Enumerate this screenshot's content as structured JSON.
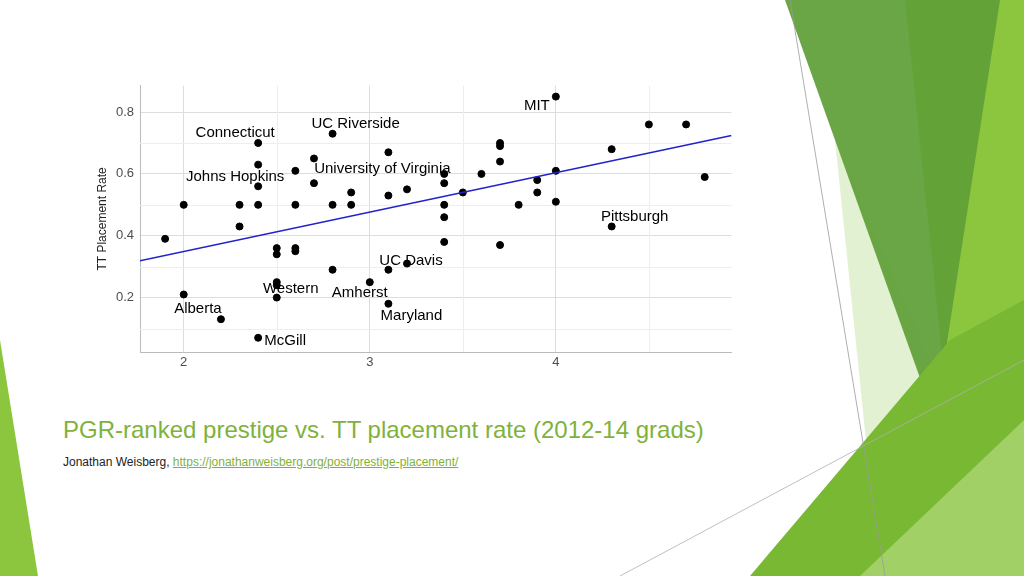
{
  "chart_data": {
    "type": "scatter",
    "title": "PGR-ranked prestige vs. TT placement rate (2012-14 grads)",
    "subtitle": "Jonathan Weisberg,",
    "source_url": "https://jonathanweisberg.org/post/prestige-placement/",
    "y_label": "TT Placement Rate",
    "x": [
      1.9,
      2.0,
      2.0,
      2.2,
      2.3,
      2.3,
      2.4,
      2.4,
      2.4,
      2.4,
      2.4,
      2.5,
      2.5,
      2.5,
      2.5,
      2.5,
      2.6,
      2.6,
      2.6,
      2.6,
      2.7,
      2.7,
      2.8,
      2.8,
      2.8,
      2.9,
      2.9,
      3.0,
      3.1,
      3.1,
      3.1,
      3.1,
      3.2,
      3.2,
      3.4,
      3.4,
      3.4,
      3.4,
      3.4,
      3.5,
      3.6,
      3.7,
      3.7,
      3.7,
      3.7,
      3.8,
      3.9,
      3.9,
      4.0,
      4.0,
      4.0,
      4.3,
      4.3,
      4.5,
      4.7,
      4.8
    ],
    "values": [
      0.39,
      0.5,
      0.21,
      0.13,
      0.5,
      0.43,
      0.7,
      0.63,
      0.56,
      0.5,
      0.07,
      0.36,
      0.34,
      0.25,
      0.24,
      0.2,
      0.61,
      0.5,
      0.36,
      0.35,
      0.65,
      0.57,
      0.73,
      0.5,
      0.29,
      0.54,
      0.5,
      0.25,
      0.67,
      0.53,
      0.29,
      0.18,
      0.55,
      0.31,
      0.6,
      0.57,
      0.5,
      0.46,
      0.38,
      0.54,
      0.6,
      0.7,
      0.69,
      0.64,
      0.37,
      0.5,
      0.58,
      0.54,
      0.85,
      0.61,
      0.51,
      0.68,
      0.43,
      0.76,
      0.76,
      0.59
    ],
    "color": "#000000",
    "trend": {
      "x": [
        1.765,
        4.944
      ],
      "values": [
        0.319,
        0.724
      ],
      "color": "#2222cc"
    },
    "annotations": [
      {
        "text": "MIT",
        "x": 4.0,
        "y": 0.85
      },
      {
        "text": "UC Riverside",
        "x": 2.8,
        "y": 0.73
      },
      {
        "text": "Connecticut",
        "x": 2.4,
        "y": 0.7
      },
      {
        "text": "University of Virginia",
        "x": 3.1,
        "y": 0.53
      },
      {
        "text": "Johns Hopkins",
        "x": 2.4,
        "y": 0.63
      },
      {
        "text": "Pittsburgh",
        "x": 4.3,
        "y": 0.43
      },
      {
        "text": "UC Davis",
        "x": 3.2,
        "y": 0.31
      },
      {
        "text": "Western",
        "x": 2.5,
        "y": 0.24
      },
      {
        "text": "Amherst",
        "x": 3.0,
        "y": 0.25
      },
      {
        "text": "Maryland",
        "x": 3.1,
        "y": 0.18
      },
      {
        "text": "Alberta",
        "x": 2.2,
        "y": 0.13
      },
      {
        "text": "McGill",
        "x": 2.4,
        "y": 0.07
      }
    ],
    "xlim": [
      1.765,
      4.944
    ],
    "xticks": [
      2,
      3,
      4
    ],
    "ylim": [
      0.024,
      0.885
    ],
    "yticks": [
      0.2,
      0.4,
      0.6,
      0.8
    ],
    "grid": true
  }
}
